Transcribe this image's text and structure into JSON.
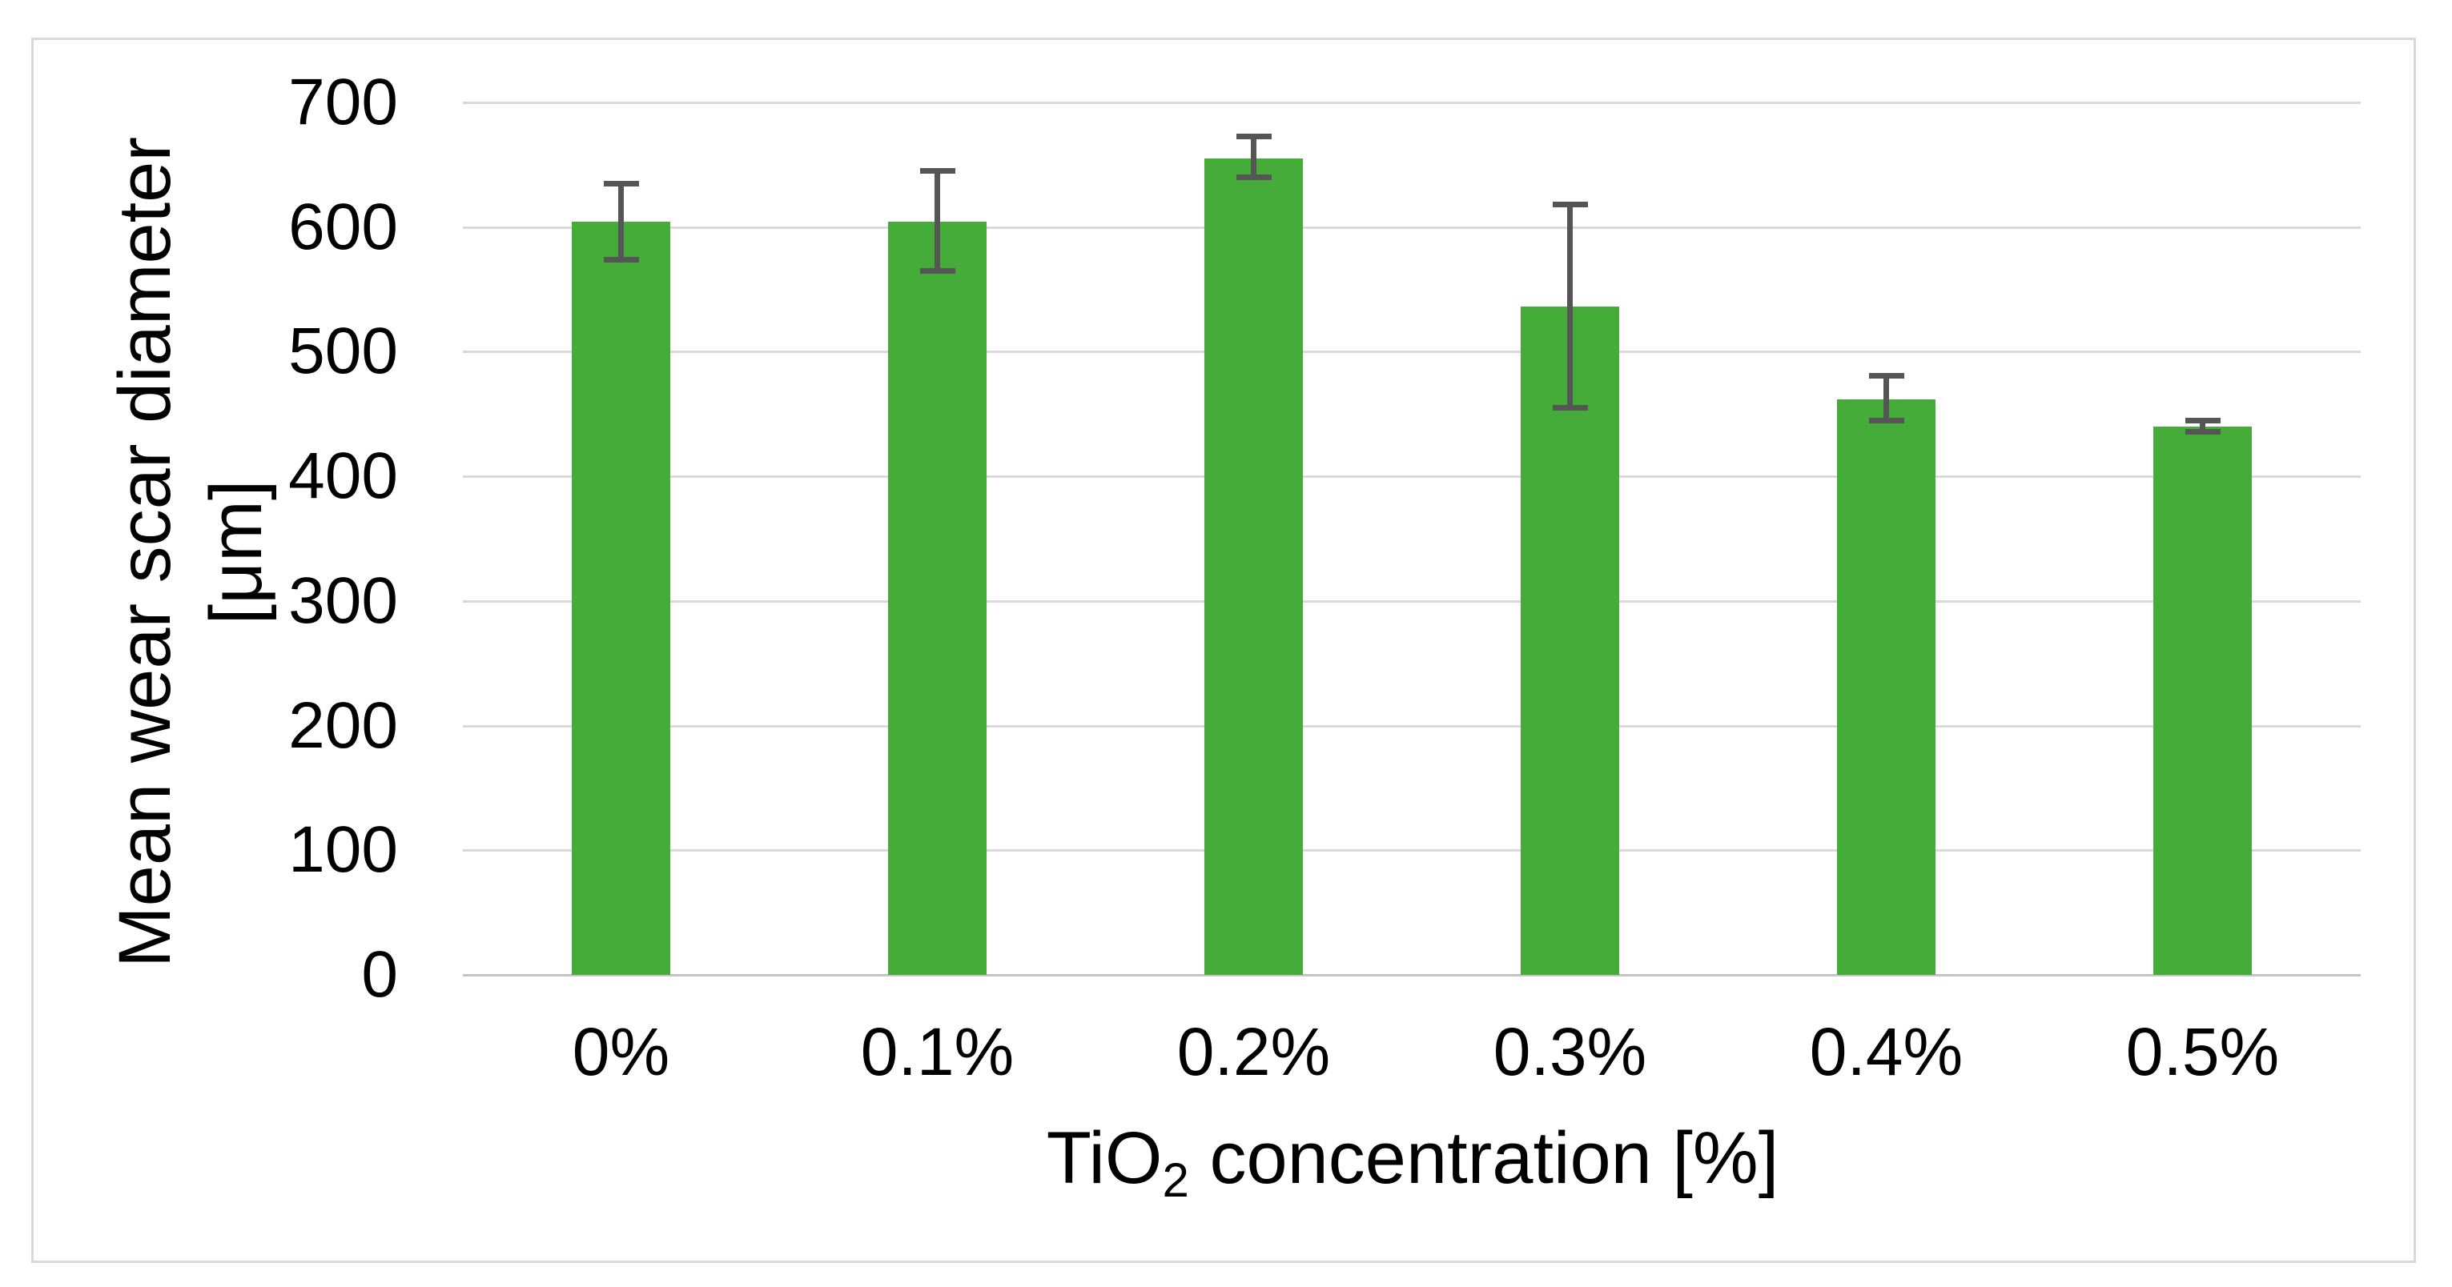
{
  "figure": {
    "y_axis_title_line1": "Mean wear scar diameter",
    "y_axis_title_line2": "[μm]",
    "x_axis_title_prefix": "TiO",
    "x_axis_title_subscript": "2",
    "x_axis_title_suffix": " concentration [%]"
  },
  "chart_data": {
    "type": "bar",
    "title": "",
    "categories": [
      "0%",
      "0.1%",
      "0.2%",
      "0.3%",
      "0.4%",
      "0.5%"
    ],
    "values": [
      604,
      604,
      655,
      536,
      462,
      440
    ],
    "error_bars": {
      "upper": [
        635,
        645,
        673,
        618,
        481,
        445
      ],
      "lower": [
        574,
        565,
        640,
        455,
        445,
        436
      ]
    },
    "xlabel": "TiO2 concentration [%]",
    "ylabel": "Mean wear scar diameter [μm]",
    "ylim": [
      0,
      700
    ],
    "yticks": [
      700,
      600,
      500,
      400,
      300,
      200,
      100,
      0
    ],
    "grid": true,
    "legend": false,
    "colors": {
      "bar_fill": "#45ac39",
      "error_bar": "#555555",
      "gridline": "#d9d9d9",
      "axis_line": "#c4c4c4",
      "figure_border": "#d9d9d9",
      "text": "#000000",
      "background": "#ffffff"
    }
  }
}
